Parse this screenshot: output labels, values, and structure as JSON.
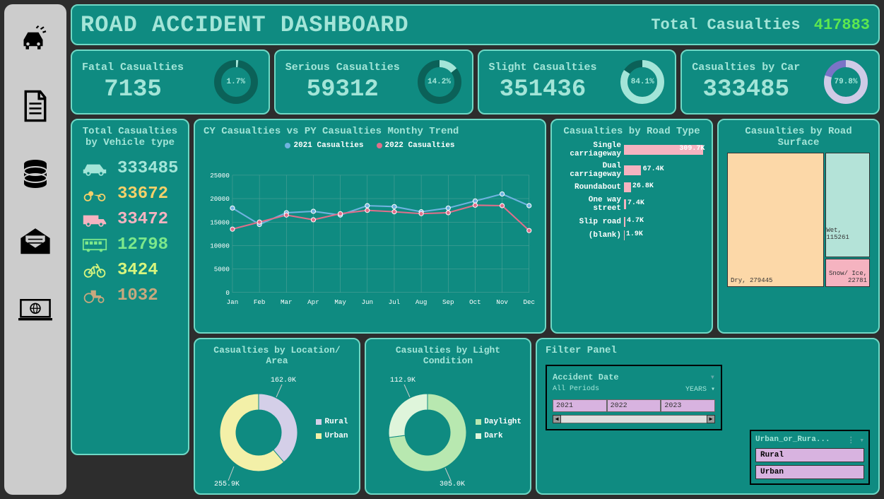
{
  "header": {
    "title": "ROAD ACCIDENT DASHBOARD",
    "total_label": "Total Casualties",
    "total_value": "417883"
  },
  "kpis": [
    {
      "label": "Fatal Casualties",
      "value": "7135",
      "pct": 1.7,
      "pct_label": "1.7%",
      "ring_bg": "#0b6158",
      "ring_fg": "#a3e5d8"
    },
    {
      "label": "Serious Casualties",
      "value": "59312",
      "pct": 14.2,
      "pct_label": "14.2%",
      "ring_bg": "#0b6158",
      "ring_fg": "#a3e5d8"
    },
    {
      "label": "Slight Casualties",
      "value": "351436",
      "pct": 84.1,
      "pct_label": "84.1%",
      "ring_bg": "#0b6158",
      "ring_fg": "#a3e5d8"
    },
    {
      "label": "Casualties by Car",
      "value": "333485",
      "pct": 79.8,
      "pct_label": "79.8%",
      "ring_bg": "#7a73c7",
      "ring_fg": "#cfcbe6"
    }
  ],
  "vehicle": {
    "title": "Total Casualties by Vehicle type",
    "items": [
      {
        "name": "car",
        "value": "333485",
        "color": "#a3e5d8"
      },
      {
        "name": "motorcycle",
        "value": "33672",
        "color": "#f4d06a"
      },
      {
        "name": "van",
        "value": "33472",
        "color": "#f5b3c0"
      },
      {
        "name": "bus",
        "value": "12798",
        "color": "#7de88b"
      },
      {
        "name": "bicycle",
        "value": "3424",
        "color": "#d7f57e"
      },
      {
        "name": "tractor",
        "value": "1032",
        "color": "#c7a87e"
      }
    ]
  },
  "trend": {
    "title": "CY Casualties vs PY Casualties Monthy Trend",
    "legend": [
      "2021 Casualties",
      "2022 Casualties"
    ],
    "colors": [
      "#6fb3e0",
      "#e06f8b"
    ],
    "months": [
      "Jan",
      "Feb",
      "Mar",
      "Apr",
      "May",
      "Jun",
      "Jul",
      "Aug",
      "Sep",
      "Oct",
      "Nov",
      "Dec"
    ],
    "y_ticks": [
      0,
      5000,
      10000,
      15000,
      20000,
      25000
    ],
    "series_2021": [
      18000,
      14500,
      17000,
      17300,
      16500,
      18500,
      18300,
      17200,
      18000,
      19500,
      21000,
      18500
    ],
    "series_2022": [
      13500,
      15000,
      16500,
      15500,
      16800,
      17500,
      17200,
      16800,
      17000,
      18600,
      18500,
      13200
    ],
    "y_max": 25000,
    "grid_color": "#5aa59b",
    "text_color": "#ffffff"
  },
  "roadtype": {
    "title": "Casualties by Road Type",
    "bar_color": "#f5b3c0",
    "max": 309700,
    "items": [
      {
        "label": "Single carriageway",
        "value": 309700,
        "display": "309.7K"
      },
      {
        "label": "Dual carriageway",
        "value": 67400,
        "display": "67.4K"
      },
      {
        "label": "Roundabout",
        "value": 26800,
        "display": "26.8K"
      },
      {
        "label": "One way street",
        "value": 7400,
        "display": "7.4K"
      },
      {
        "label": "Slip road",
        "value": 4700,
        "display": "4.7K"
      },
      {
        "label": "(blank)",
        "value": 1900,
        "display": "1.9K"
      }
    ]
  },
  "surface": {
    "title": "Casualties by Road Surface",
    "items": [
      {
        "label": "Dry, 279445",
        "color": "#fcd8a8"
      },
      {
        "label": "Wet, 115261",
        "color": "#b4e3d8"
      },
      {
        "label": "Snow/ Ice, 22781",
        "color": "#f5b3c0"
      }
    ]
  },
  "location": {
    "title": "Casualties by Location/ Area",
    "legend": [
      {
        "label": "Rural",
        "color": "#d4cfe8"
      },
      {
        "label": "Urban",
        "color": "#f3f0a8"
      }
    ],
    "slices": [
      {
        "label": "162.0K",
        "value": 162.0,
        "color": "#d4cfe8"
      },
      {
        "label": "255.9K",
        "value": 255.9,
        "color": "#f3f0a8"
      }
    ],
    "total": 417.9
  },
  "light": {
    "title": "Casualties by Light Condition",
    "legend": [
      {
        "label": "Daylight",
        "color": "#b8e8b0"
      },
      {
        "label": "Dark",
        "color": "#dff5db"
      }
    ],
    "slices": [
      {
        "label": "305.0K",
        "value": 305.0,
        "color": "#b8e8b0"
      },
      {
        "label": "112.9K",
        "value": 112.9,
        "color": "#dff5db"
      }
    ],
    "total": 417.9
  },
  "filter": {
    "title": "Filter Panel",
    "date_title": "Accident Date",
    "period": "All Periods",
    "period_unit": "YEARS ▾",
    "years": [
      "2021",
      "2022",
      "2023"
    ],
    "urban_title": "Urban_or_Rura...",
    "urban_items": [
      "Rural",
      "Urban"
    ]
  }
}
